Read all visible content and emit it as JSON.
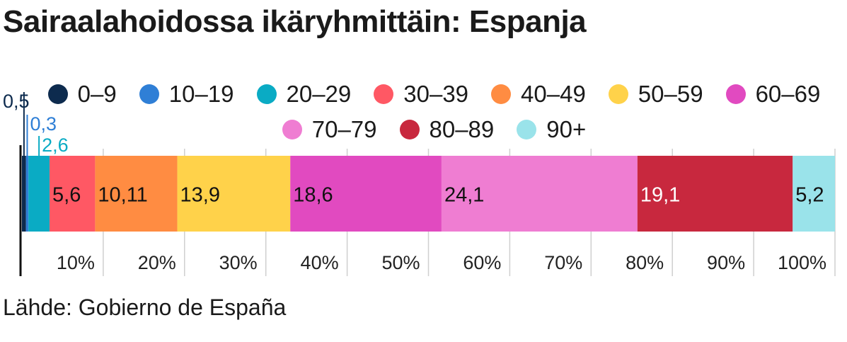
{
  "chart_data": {
    "type": "bar",
    "orientation": "horizontal-stacked-100",
    "title": "Sairaalahoidossa ikäryhmittäin: Espanja",
    "source": "Lähde: Gobierno de España",
    "xlim": [
      0,
      100
    ],
    "ticks": [
      "10%",
      "20%",
      "30%",
      "40%",
      "50%",
      "60%",
      "70%",
      "80%",
      "90%",
      "100%"
    ],
    "legend_position": "top",
    "series": [
      {
        "name": "0–9",
        "value": 0.5,
        "label": "0,5",
        "color": "#0d2b4e",
        "text_color": "#0d2b4e"
      },
      {
        "name": "10–19",
        "value": 0.3,
        "label": "0,3",
        "color": "#2f7fd6",
        "text_color": "#2f7fd6"
      },
      {
        "name": "20–29",
        "value": 2.6,
        "label": "2,6",
        "color": "#0aabc4",
        "text_color": "#0aabc4"
      },
      {
        "name": "30–39",
        "value": 5.6,
        "label": "5,6",
        "color": "#ff5864",
        "text_color": "#111111"
      },
      {
        "name": "40–49",
        "value": 10.11,
        "label": "10,11",
        "color": "#ff8c42",
        "text_color": "#111111"
      },
      {
        "name": "50–59",
        "value": 13.9,
        "label": "13,9",
        "color": "#ffd24a",
        "text_color": "#111111"
      },
      {
        "name": "60–69",
        "value": 18.6,
        "label": "18,6",
        "color": "#e14ac0",
        "text_color": "#111111"
      },
      {
        "name": "70–79",
        "value": 24.1,
        "label": "24,1",
        "color": "#ef7dd2",
        "text_color": "#111111"
      },
      {
        "name": "80–89",
        "value": 19.1,
        "label": "19,1",
        "color": "#c8283e",
        "text_color": "#ffffff"
      },
      {
        "name": "90+",
        "value": 5.2,
        "label": "5,2",
        "color": "#9ae3ea",
        "text_color": "#111111"
      }
    ]
  }
}
